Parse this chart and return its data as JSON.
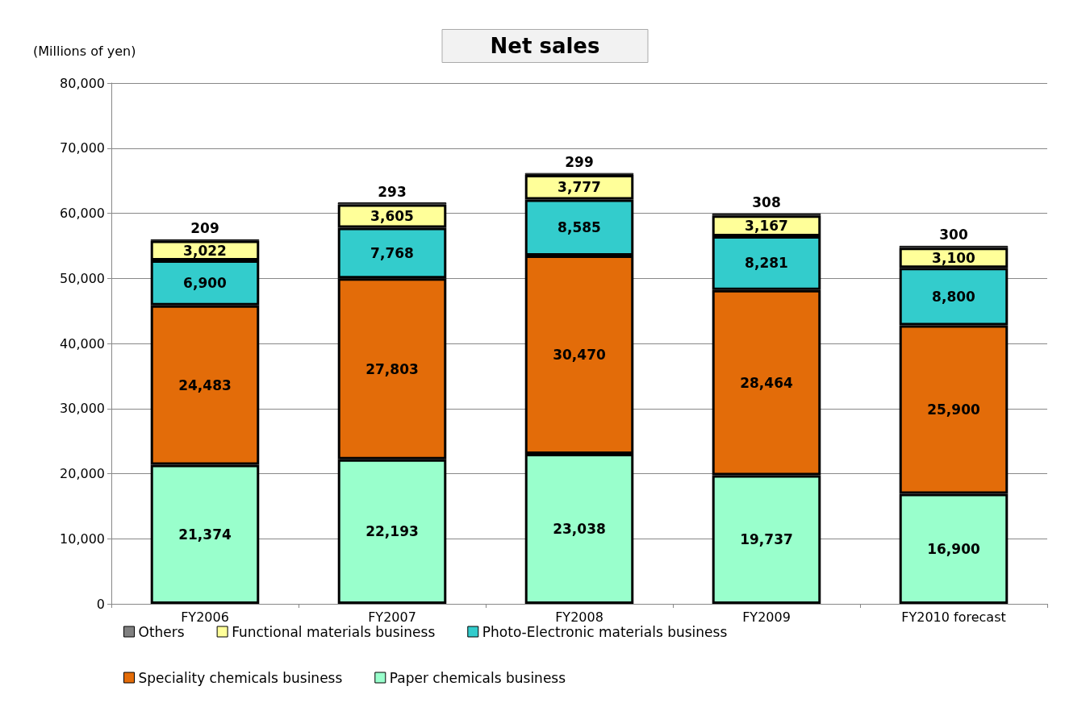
{
  "chart_data": {
    "type": "bar",
    "title": "Net sales",
    "ylabel": "(Millions of yen)",
    "categories": [
      "FY2006",
      "FY2007",
      "FY2008",
      "FY2009",
      "FY2010 forecast"
    ],
    "stacked": true,
    "series": [
      {
        "name": "Paper chemicals business",
        "color": "#99ffcc",
        "values": [
          21374,
          22193,
          23038,
          19737,
          16900
        ],
        "value_labels": [
          "21,374",
          "22,193",
          "23,038",
          "19,737",
          "16,900"
        ]
      },
      {
        "name": "Speciality chemicals business",
        "color": "#e36c09",
        "values": [
          24483,
          27803,
          30470,
          28464,
          25900
        ],
        "value_labels": [
          "24,483",
          "27,803",
          "30,470",
          "28,464",
          "25,900"
        ]
      },
      {
        "name": "Photo-Electronic materials business",
        "color": "#33cccc",
        "values": [
          6900,
          7768,
          8585,
          8281,
          8800
        ],
        "value_labels": [
          "6,900",
          "7,768",
          "8,585",
          "8,281",
          "8,800"
        ]
      },
      {
        "name": "Functional materials business",
        "color": "#ffff99",
        "values": [
          3022,
          3605,
          3777,
          3167,
          3100
        ],
        "value_labels": [
          "3,022",
          "3,605",
          "3,777",
          "3,167",
          "3,100"
        ]
      },
      {
        "name": "Others",
        "color": "#808080",
        "values": [
          209,
          293,
          299,
          308,
          300
        ],
        "value_labels": [
          "209",
          "293",
          "299",
          "308",
          "300"
        ]
      }
    ],
    "ylim": [
      0,
      80000
    ],
    "yticks": [
      0,
      {
        "value": 10000,
        "label": "10,000"
      },
      {
        "value": 20000,
        "label": "20,000"
      },
      {
        "value": 30000,
        "label": "30,000"
      },
      {
        "value": 40000,
        "label": "40,000"
      },
      {
        "value": 50000,
        "label": "50,000"
      },
      {
        "value": 60000,
        "label": "60,000"
      },
      {
        "value": 70000,
        "label": "70,000"
      },
      {
        "value": 80000,
        "label": "80,000"
      }
    ],
    "grid": "y",
    "legend": "bottom"
  }
}
